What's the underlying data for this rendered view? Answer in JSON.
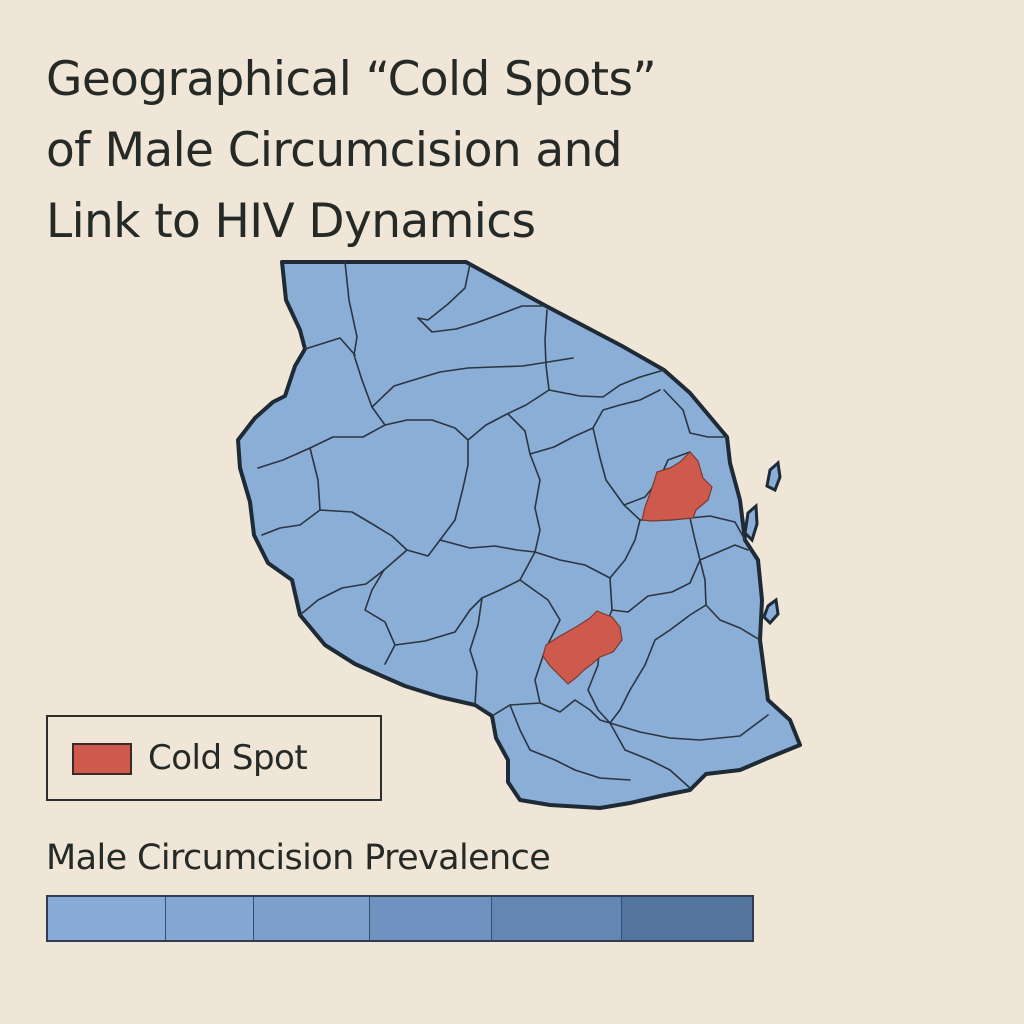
{
  "title": {
    "line1": "Geographical “Cold Spots”",
    "line2": "of Male Circumcision and",
    "line3": "Link to HIV Dynamics"
  },
  "map": {
    "region_fill": "#8aaed6",
    "border_color": "#2c3440",
    "cold_spot_color": "#cd5a4c"
  },
  "legend": {
    "cold_spot_label": "Cold Spot",
    "cold_spot_color": "#cd5a4c"
  },
  "scale": {
    "title": "Male Circumcision Prevalence",
    "segments": [
      {
        "color": "#87aad6"
      },
      {
        "color": "#84a6d2"
      },
      {
        "color": "#7d9fcc"
      },
      {
        "color": "#6f92c0"
      },
      {
        "color": "#6486b3"
      },
      {
        "color": "#52749f"
      }
    ]
  }
}
